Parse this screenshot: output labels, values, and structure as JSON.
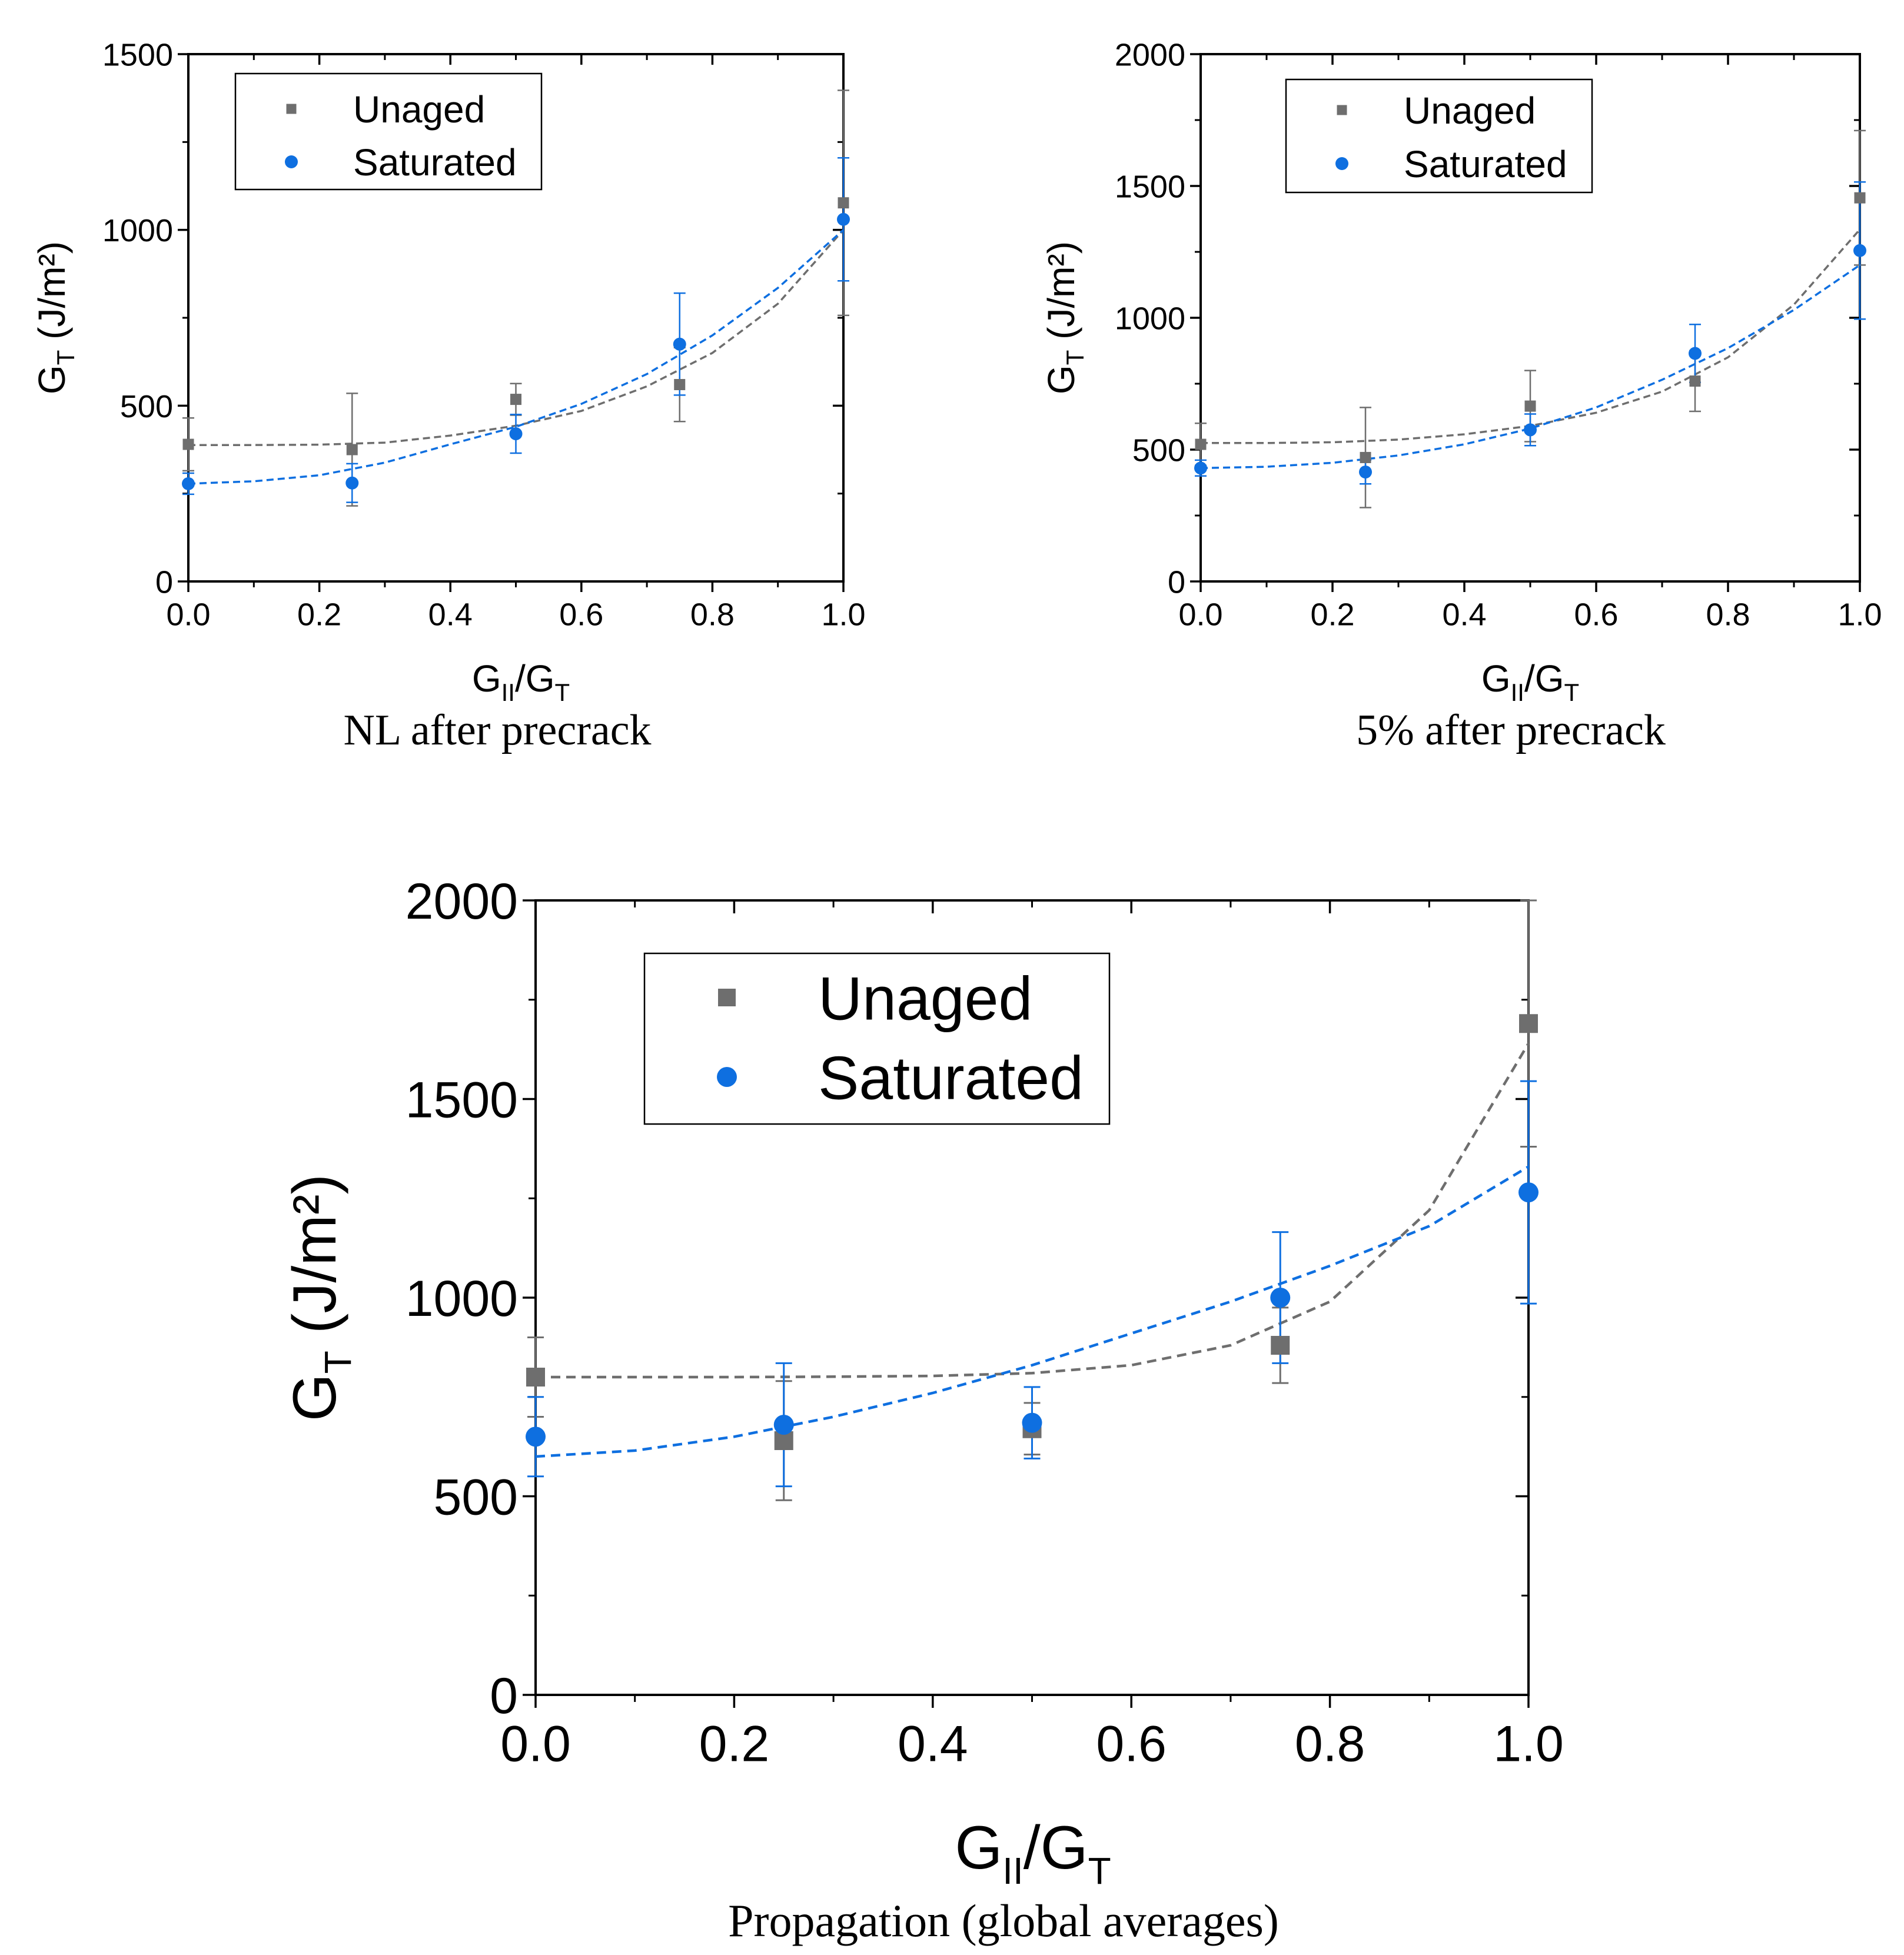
{
  "chart_data": [
    {
      "type": "scatter",
      "caption": "NL after precrack",
      "xlabel_main": "G",
      "xlabel_sub": "II",
      "xlabel_mid": "/G",
      "xlabel_sub2": "T",
      "ylabel_main": "G",
      "ylabel_sub": "T",
      "ylabel_unit": " (J/m²)",
      "xlim": [
        0,
        1
      ],
      "ylim": [
        0,
        1500
      ],
      "xticks": [
        "0.0",
        "0.2",
        "0.4",
        "0.6",
        "0.8",
        "1.0"
      ],
      "yticks": [
        "0",
        "500",
        "1000",
        "1500"
      ],
      "legend_position": "top-left",
      "series": [
        {
          "name": "Unaged",
          "marker": "square",
          "color": "#6e6e6e",
          "x": [
            0,
            0.25,
            0.5,
            0.75,
            1.0
          ],
          "y": [
            390,
            375,
            518,
            560,
            1077
          ],
          "err": [
            75,
            160,
            45,
            105,
            320
          ],
          "fit": [
            [
              0,
              388
            ],
            [
              0.1,
              388
            ],
            [
              0.2,
              389
            ],
            [
              0.3,
              395
            ],
            [
              0.4,
              415
            ],
            [
              0.5,
              443
            ],
            [
              0.6,
              485
            ],
            [
              0.7,
              555
            ],
            [
              0.8,
              650
            ],
            [
              0.9,
              790
            ],
            [
              1.0,
              1000
            ]
          ]
        },
        {
          "name": "Saturated",
          "marker": "circle",
          "color": "#0e6fe0",
          "x": [
            0,
            0.25,
            0.5,
            0.75,
            1.0
          ],
          "y": [
            278,
            280,
            420,
            675,
            1030
          ],
          "err": [
            30,
            55,
            55,
            145,
            175
          ],
          "fit": [
            [
              0,
              278
            ],
            [
              0.1,
              285
            ],
            [
              0.2,
              302
            ],
            [
              0.3,
              338
            ],
            [
              0.4,
              390
            ],
            [
              0.5,
              440
            ],
            [
              0.6,
              505
            ],
            [
              0.7,
              590
            ],
            [
              0.8,
              700
            ],
            [
              0.9,
              835
            ],
            [
              1.0,
              1000
            ]
          ]
        }
      ]
    },
    {
      "type": "scatter",
      "caption": "5% after precrack",
      "xlabel_main": "G",
      "xlabel_sub": "II",
      "xlabel_mid": "/G",
      "xlabel_sub2": "T",
      "ylabel_main": "G",
      "ylabel_sub": "T",
      "ylabel_unit": " (J/m²)",
      "xlim": [
        0,
        1
      ],
      "ylim": [
        0,
        2000
      ],
      "xticks": [
        "0.0",
        "0.2",
        "0.4",
        "0.6",
        "0.8",
        "1.0"
      ],
      "yticks": [
        "0",
        "500",
        "1000",
        "1500",
        "2000"
      ],
      "legend_position": "top-left",
      "series": [
        {
          "name": "Unaged",
          "marker": "square",
          "color": "#6e6e6e",
          "x": [
            0,
            0.25,
            0.5,
            0.75,
            1.0
          ],
          "y": [
            520,
            470,
            665,
            760,
            1455
          ],
          "err": [
            80,
            190,
            135,
            115,
            255
          ],
          "fit": [
            [
              0,
              525
            ],
            [
              0.1,
              525
            ],
            [
              0.2,
              528
            ],
            [
              0.3,
              538
            ],
            [
              0.4,
              558
            ],
            [
              0.5,
              590
            ],
            [
              0.6,
              640
            ],
            [
              0.7,
              720
            ],
            [
              0.8,
              850
            ],
            [
              0.9,
              1050
            ],
            [
              1.0,
              1335
            ]
          ]
        },
        {
          "name": "Saturated",
          "marker": "circle",
          "color": "#0e6fe0",
          "x": [
            0,
            0.25,
            0.5,
            0.75,
            1.0
          ],
          "y": [
            430,
            415,
            575,
            865,
            1255
          ],
          "err": [
            30,
            45,
            60,
            110,
            260
          ],
          "fit": [
            [
              0,
              430
            ],
            [
              0.1,
              435
            ],
            [
              0.2,
              450
            ],
            [
              0.3,
              478
            ],
            [
              0.4,
              520
            ],
            [
              0.5,
              580
            ],
            [
              0.6,
              660
            ],
            [
              0.7,
              765
            ],
            [
              0.8,
              885
            ],
            [
              0.9,
              1030
            ],
            [
              1.0,
              1200
            ]
          ]
        }
      ]
    },
    {
      "type": "scatter",
      "caption": "Propagation (global averages)",
      "xlabel_main": "G",
      "xlabel_sub": "II",
      "xlabel_mid": "/G",
      "xlabel_sub2": "T",
      "ylabel_main": "G",
      "ylabel_sub": "T",
      "ylabel_unit": " (J/m²)",
      "xlim": [
        0,
        1
      ],
      "ylim": [
        0,
        2000
      ],
      "xticks": [
        "0.0",
        "0.2",
        "0.4",
        "0.6",
        "0.8",
        "1.0"
      ],
      "yticks": [
        "0",
        "500",
        "1000",
        "1500",
        "2000"
      ],
      "legend_position": "top-left",
      "series": [
        {
          "name": "Unaged",
          "marker": "square",
          "color": "#6e6e6e",
          "x": [
            0,
            0.25,
            0.5,
            0.75,
            1.0
          ],
          "y": [
            800,
            640,
            670,
            880,
            1690
          ],
          "err": [
            100,
            150,
            65,
            95,
            310
          ],
          "fit": [
            [
              0,
              800
            ],
            [
              0.1,
              800
            ],
            [
              0.2,
              800
            ],
            [
              0.3,
              801
            ],
            [
              0.4,
              803
            ],
            [
              0.5,
              810
            ],
            [
              0.6,
              830
            ],
            [
              0.7,
              880
            ],
            [
              0.8,
              990
            ],
            [
              0.9,
              1220
            ],
            [
              1.0,
              1640
            ]
          ]
        },
        {
          "name": "Saturated",
          "marker": "circle",
          "color": "#0e6fe0",
          "x": [
            0,
            0.25,
            0.5,
            0.75,
            1.0
          ],
          "y": [
            650,
            680,
            685,
            1000,
            1265
          ],
          "err": [
            100,
            155,
            90,
            165,
            280
          ],
          "fit": [
            [
              0,
              600
            ],
            [
              0.1,
              615
            ],
            [
              0.2,
              650
            ],
            [
              0.3,
              700
            ],
            [
              0.4,
              760
            ],
            [
              0.5,
              830
            ],
            [
              0.6,
              910
            ],
            [
              0.7,
              990
            ],
            [
              0.8,
              1080
            ],
            [
              0.9,
              1180
            ],
            [
              1.0,
              1330
            ]
          ]
        }
      ]
    }
  ]
}
